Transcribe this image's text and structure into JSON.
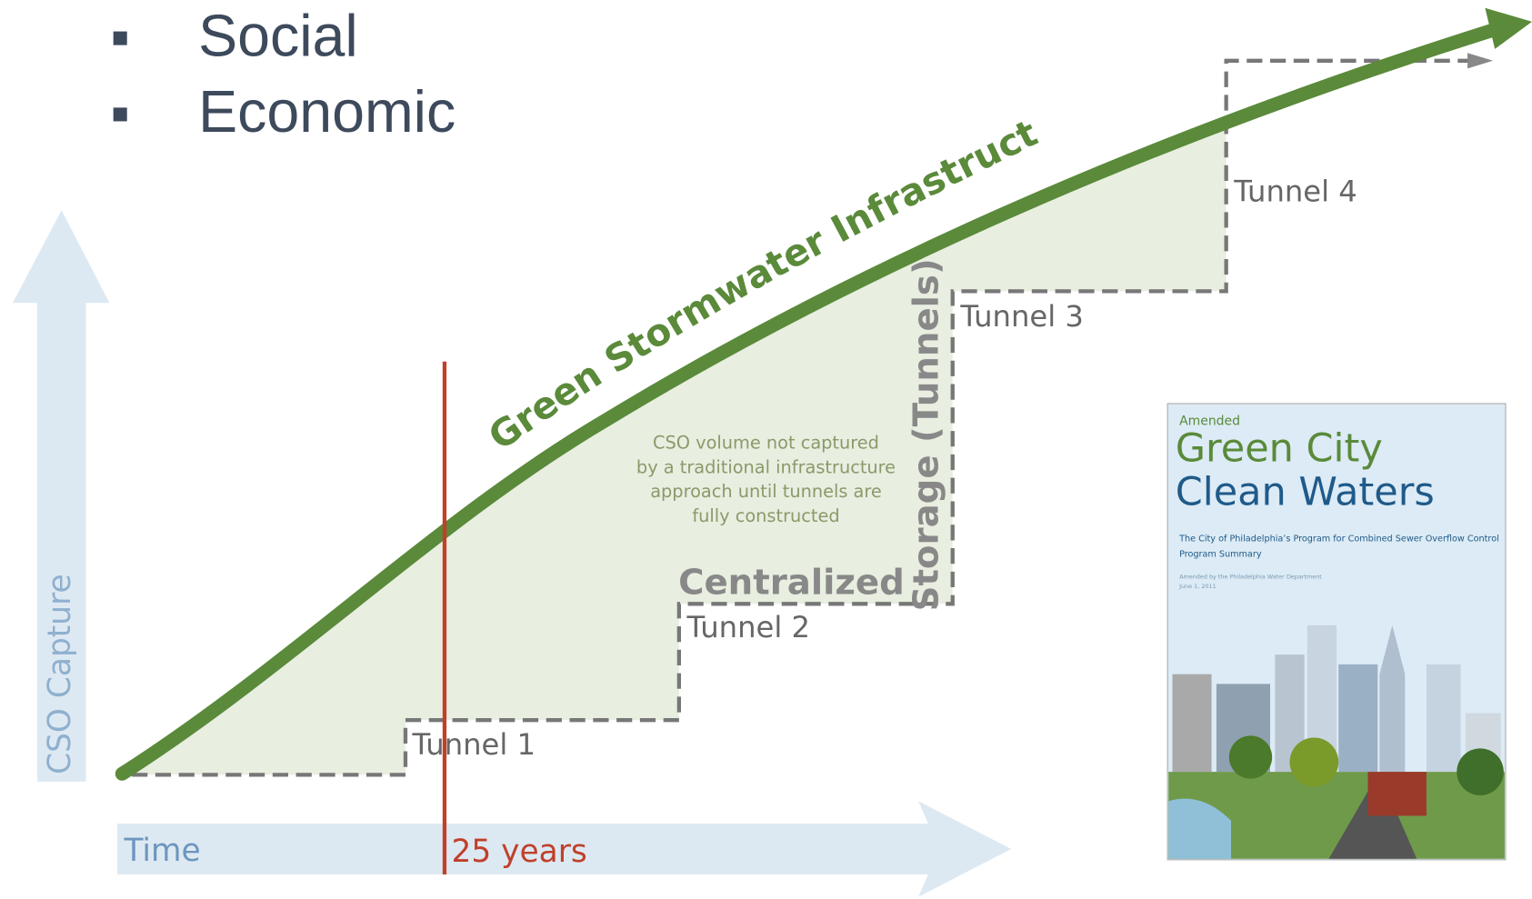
{
  "bullets": [
    "Social",
    "Economic"
  ],
  "diagram": {
    "y_axis_label": "CSO Capture",
    "x_axis_label": "Time",
    "milestone_label": "25 years",
    "curve_label": "Green Stormwater Infrastructure",
    "tunnels": [
      "Tunnel 1",
      "Tunnel 2",
      "Tunnel 3",
      "Tunnel 4"
    ],
    "note": [
      "CSO volume not captured",
      "by a traditional infrastructure",
      "approach until tunnels are",
      "fully constructed"
    ],
    "centralized_label": "Centralized",
    "storage_label": "Storage (Tunnels)"
  },
  "cover": {
    "kicker": "Amended",
    "title_line1": "Green City",
    "title_line2": "Clean Waters",
    "subtitle": "The City of Philadelphia’s Program for Combined Sewer Overflow Control",
    "subtitle2": "Program Summary",
    "byline": "Amended by the Philadelphia Water Department",
    "date": "June 1, 2011"
  }
}
